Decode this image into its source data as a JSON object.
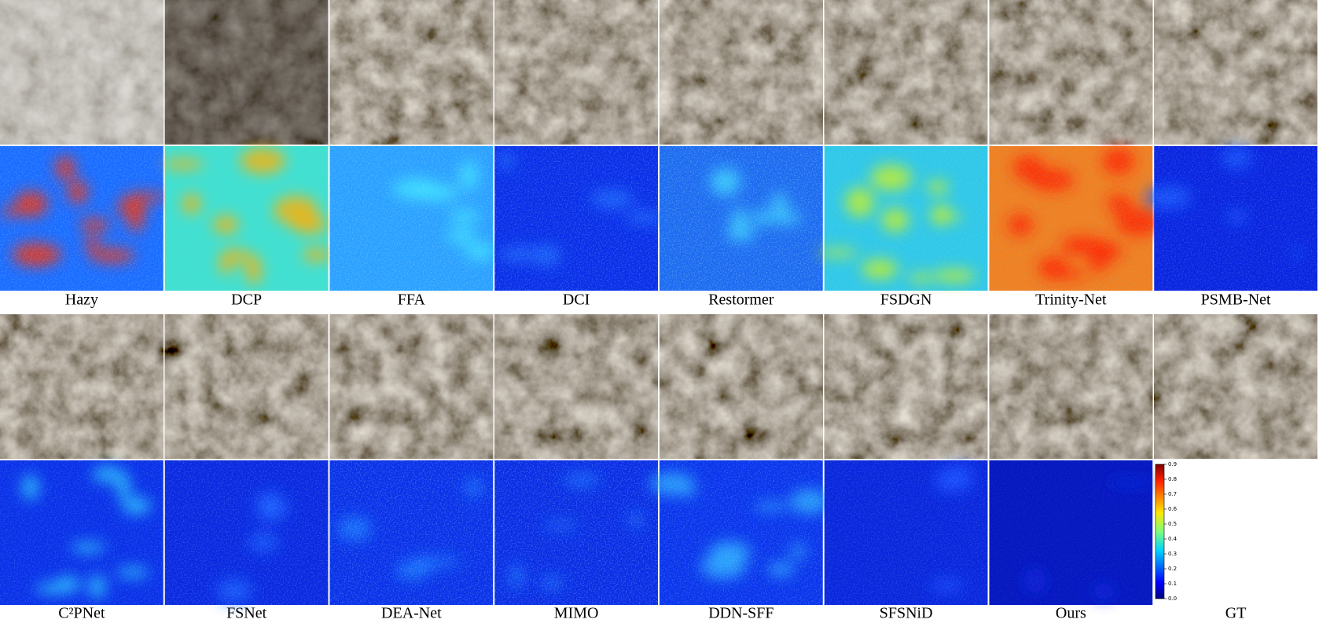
{
  "rows": [
    {
      "labels": [
        "Hazy",
        "DCP",
        "FFA",
        "DCI",
        "Restormer",
        "FSDGN",
        "Trinity-Net",
        "PSMB-Net"
      ]
    },
    {
      "labels": [
        "C²PNet",
        "FSNet",
        "DEA-Net",
        "MIMO",
        "DDN-SFF",
        "SFSNiD",
        "Ours",
        "GT"
      ]
    }
  ],
  "colorbar": {
    "lim": [
      0,
      0.9
    ],
    "ticks": [
      {
        "value": 0,
        "label": "0.0"
      },
      0.1,
      0.2,
      0.3,
      0.4,
      0.5,
      0.6,
      0.7,
      0.8,
      0.9
    ]
  }
}
